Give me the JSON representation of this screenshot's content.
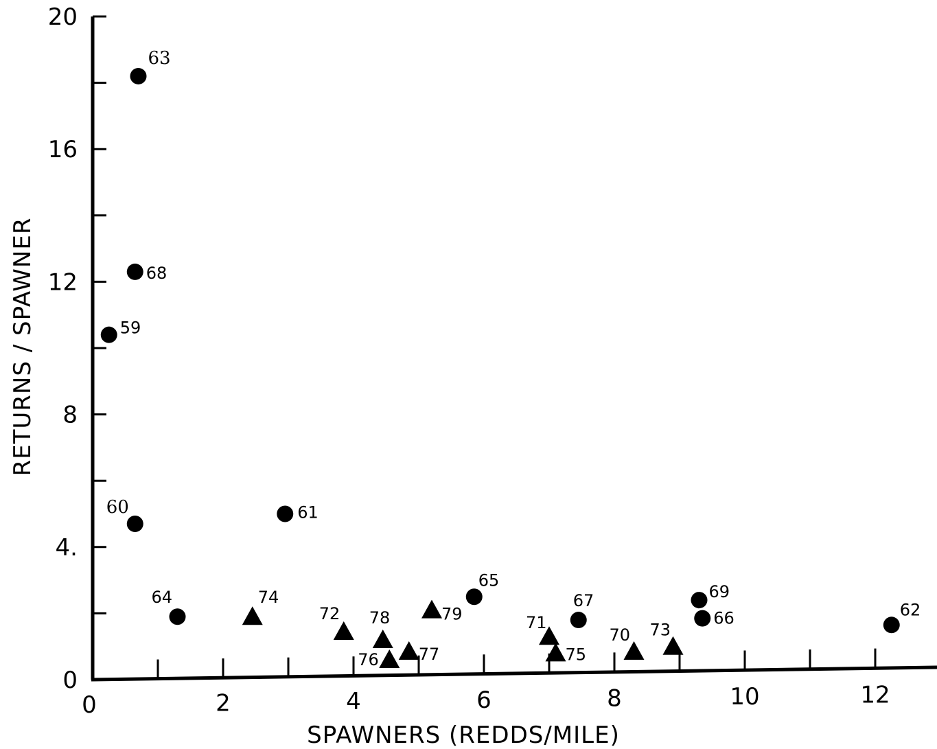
{
  "chart_data": {
    "type": "scatter",
    "title": "",
    "xlabel": "SPAWNERS (REDDS/MILE)",
    "ylabel": "RETURNS / SPAWNER",
    "xlim": [
      0,
      12.5
    ],
    "ylim": [
      0,
      20
    ],
    "x_ticks": [
      "0",
      "2",
      "4",
      "6",
      "8",
      "10",
      "12"
    ],
    "y_ticks": [
      "0",
      "4.",
      "8",
      "12",
      "16",
      "20"
    ],
    "grid": false,
    "legend": "none",
    "series": [
      {
        "marker": "circle",
        "color": "#000000",
        "points": [
          {
            "label": "63",
            "x": 0.7,
            "y": 18.2
          },
          {
            "label": "68",
            "x": 0.65,
            "y": 12.3
          },
          {
            "label": "59",
            "x": 0.25,
            "y": 10.4
          },
          {
            "label": "60",
            "x": 0.65,
            "y": 4.7
          },
          {
            "label": "61",
            "x": 2.95,
            "y": 5.0
          },
          {
            "label": "64",
            "x": 1.3,
            "y": 1.9
          },
          {
            "label": "65",
            "x": 5.85,
            "y": 2.5
          },
          {
            "label": "67",
            "x": 7.45,
            "y": 1.8
          },
          {
            "label": "69",
            "x": 9.3,
            "y": 2.4
          },
          {
            "label": "66",
            "x": 9.35,
            "y": 1.85
          },
          {
            "label": "62",
            "x": 12.25,
            "y": 1.65
          }
        ]
      },
      {
        "marker": "triangle",
        "color": "#000000",
        "points": [
          {
            "label": "74",
            "x": 2.45,
            "y": 1.9
          },
          {
            "label": "72",
            "x": 3.85,
            "y": 1.45
          },
          {
            "label": "78",
            "x": 4.45,
            "y": 1.2
          },
          {
            "label": "76",
            "x": 4.55,
            "y": 0.6
          },
          {
            "label": "77",
            "x": 4.85,
            "y": 0.85
          },
          {
            "label": "79",
            "x": 5.2,
            "y": 2.1
          },
          {
            "label": "71",
            "x": 7.0,
            "y": 1.3
          },
          {
            "label": "75",
            "x": 7.1,
            "y": 0.8
          },
          {
            "label": "70",
            "x": 8.3,
            "y": 0.85
          },
          {
            "label": "73",
            "x": 8.9,
            "y": 1.0
          }
        ]
      }
    ]
  }
}
